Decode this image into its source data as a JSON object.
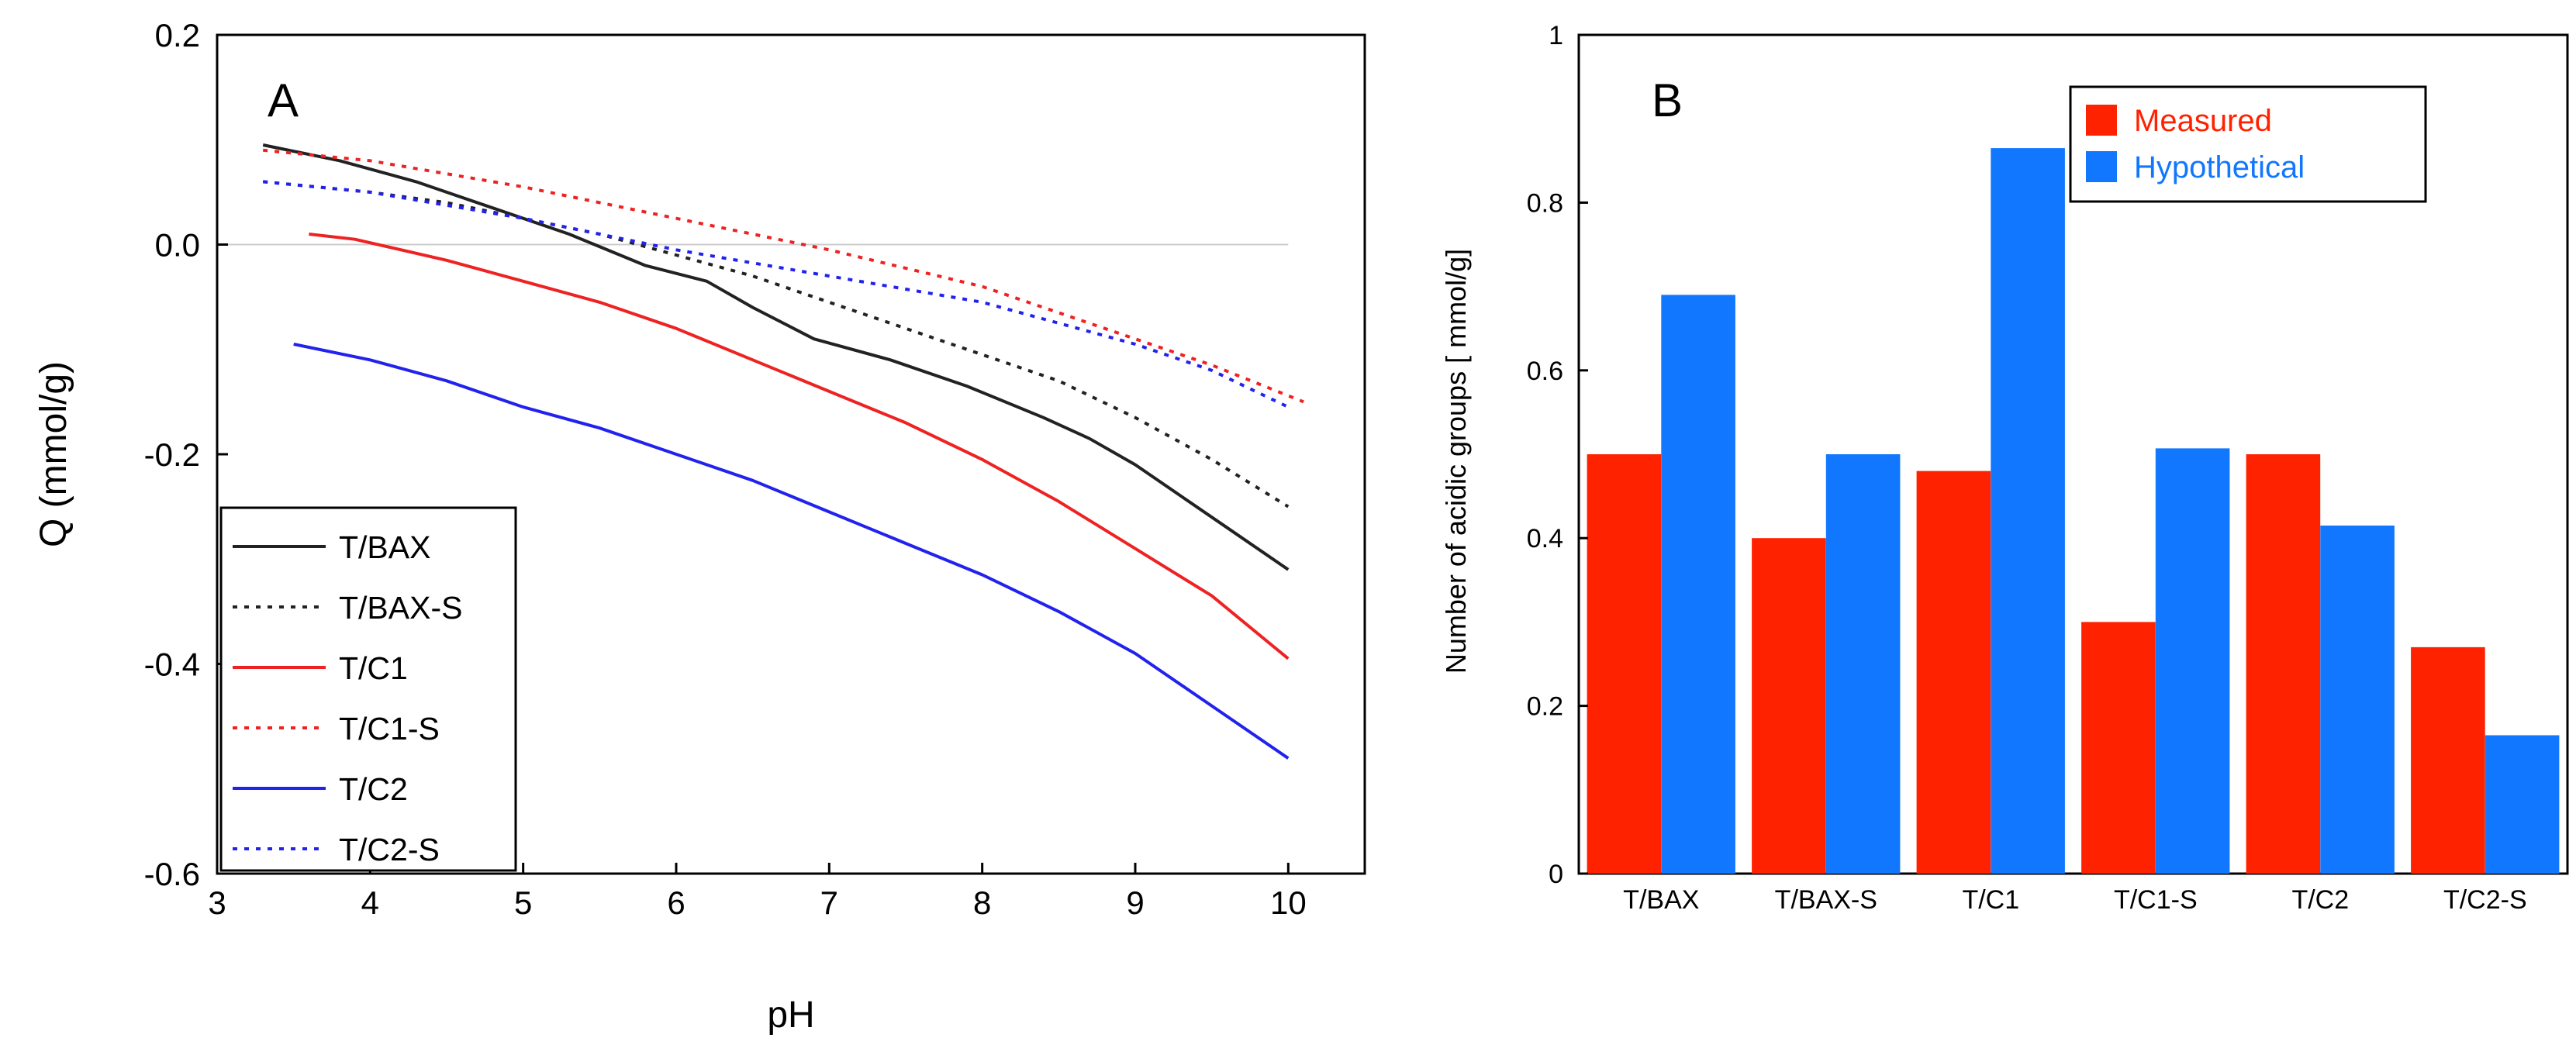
{
  "chart_data": [
    {
      "panel": "A",
      "type": "line",
      "xlabel": "pH",
      "ylabel": "Q (mmol/g)",
      "xlim": [
        3,
        10.5
      ],
      "ylim": [
        -0.6,
        0.2
      ],
      "xticks": [
        "3",
        "4",
        "5",
        "6",
        "7",
        "8",
        "9",
        "10"
      ],
      "yticks": [
        "-0.6",
        "-0.4",
        "-0.2",
        "0.0",
        "0.2"
      ],
      "zero_line": true,
      "legend_position": "bottom-left",
      "series": [
        {
          "name": "T/BAX",
          "color": "#222222",
          "dash": "solid",
          "x": [
            3.3,
            3.8,
            4.3,
            4.8,
            5.3,
            5.8,
            6.2,
            6.5,
            6.9,
            7.4,
            7.9,
            8.4,
            8.7,
            9.0,
            9.3,
            9.6,
            10.0
          ],
          "y": [
            0.095,
            0.08,
            0.06,
            0.035,
            0.01,
            -0.02,
            -0.035,
            -0.06,
            -0.09,
            -0.11,
            -0.135,
            -0.165,
            -0.185,
            -0.21,
            -0.24,
            -0.27,
            -0.31
          ]
        },
        {
          "name": "T/BAX-S",
          "color": "#222222",
          "dash": "dot",
          "x": [
            3.3,
            4.0,
            4.5,
            5.0,
            5.5,
            6.0,
            6.5,
            7.0,
            7.5,
            8.0,
            8.5,
            9.0,
            9.5,
            10.0
          ],
          "y": [
            0.06,
            0.05,
            0.04,
            0.025,
            0.01,
            -0.01,
            -0.03,
            -0.055,
            -0.08,
            -0.105,
            -0.13,
            -0.165,
            -0.205,
            -0.25
          ]
        },
        {
          "name": "T/C1",
          "color": "#ee2222",
          "dash": "solid",
          "x": [
            3.6,
            3.9,
            4.5,
            5.0,
            5.5,
            6.0,
            6.5,
            7.0,
            7.5,
            8.0,
            8.5,
            9.0,
            9.5,
            10.0
          ],
          "y": [
            0.01,
            0.005,
            -0.015,
            -0.035,
            -0.055,
            -0.08,
            -0.11,
            -0.14,
            -0.17,
            -0.205,
            -0.245,
            -0.29,
            -0.335,
            -0.395
          ]
        },
        {
          "name": "T/C1-S",
          "color": "#ee2222",
          "dash": "dot",
          "x": [
            3.3,
            4.0,
            5.0,
            6.0,
            7.0,
            8.0,
            8.5,
            9.0,
            9.5,
            10.1
          ],
          "y": [
            0.09,
            0.08,
            0.055,
            0.025,
            -0.005,
            -0.04,
            -0.065,
            -0.09,
            -0.115,
            -0.15
          ]
        },
        {
          "name": "T/C2",
          "color": "#2222ee",
          "dash": "solid",
          "x": [
            3.5,
            4.0,
            4.5,
            5.0,
            5.5,
            6.0,
            6.5,
            7.0,
            7.5,
            8.0,
            8.5,
            9.0,
            9.5,
            10.0
          ],
          "y": [
            -0.095,
            -0.11,
            -0.13,
            -0.155,
            -0.175,
            -0.2,
            -0.225,
            -0.255,
            -0.285,
            -0.315,
            -0.35,
            -0.39,
            -0.44,
            -0.49
          ]
        },
        {
          "name": "T/C2-S",
          "color": "#2222ee",
          "dash": "dot",
          "x": [
            3.3,
            4.0,
            5.0,
            6.0,
            7.0,
            8.0,
            8.5,
            9.0,
            9.5,
            10.0
          ],
          "y": [
            0.06,
            0.05,
            0.025,
            -0.005,
            -0.03,
            -0.055,
            -0.075,
            -0.095,
            -0.12,
            -0.155
          ]
        }
      ]
    },
    {
      "panel": "B",
      "type": "bar",
      "ylabel": "Number of acidic groups [ mmol/g]",
      "ylim": [
        0,
        1
      ],
      "yticks": [
        "0",
        "0.2",
        "0.4",
        "0.6",
        "0.8",
        "1"
      ],
      "categories": [
        "T/BAX",
        "T/BAX-S",
        "T/C1",
        "T/C1-S",
        "T/C2",
        "T/C2-S"
      ],
      "legend_position": "top-right",
      "series": [
        {
          "name": "Measured",
          "color": "#ff2200",
          "values": [
            0.5,
            0.4,
            0.48,
            0.3,
            0.5,
            0.27
          ]
        },
        {
          "name": "Hypothetical",
          "color": "#1177ff",
          "values": [
            0.69,
            0.5,
            0.865,
            0.507,
            0.415,
            0.165
          ]
        }
      ]
    }
  ]
}
